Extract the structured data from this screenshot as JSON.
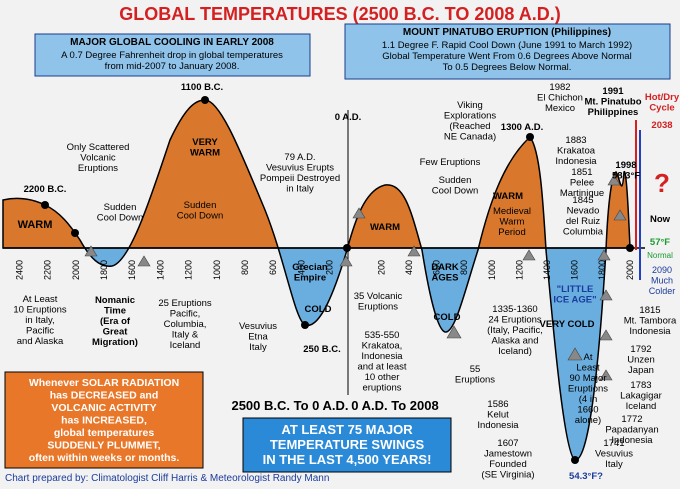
{
  "title": "GLOBAL TEMPERATURES (2500 B.C. TO 2008 A.D.)",
  "box_left": {
    "heading": "MAJOR GLOBAL COOLING IN EARLY 2008",
    "lines": [
      "A 0.7 Degree Fahrenheit drop in global temperatures",
      "from mid-2007 to January 2008."
    ]
  },
  "box_right": {
    "heading": "MOUNT PINATUBO ERUPTION (Philippines)",
    "lines": [
      "1.1 Degree F. Rapid Cool Down (June 1991 to March 1992)",
      "Global Temperature Went From 0.6 Degrees Above Normal",
      "To 0.5 Degrees Below Normal."
    ]
  },
  "box_solar": {
    "lines": [
      "Whenever SOLAR RADIATION",
      "has DECREASED and",
      "VOLCANIC ACTIVITY",
      "has INCREASED,",
      "global temperatures",
      "SUDDENLY PLUMMET,",
      "often within weeks or months."
    ]
  },
  "box_swings": {
    "lines": [
      "AT LEAST 75 MAJOR",
      "TEMPERATURE SWINGS",
      "IN THE LAST 4,500 YEARS!"
    ]
  },
  "bc_ticks": [
    2400,
    2200,
    2000,
    1800,
    1600,
    1400,
    1200,
    1000,
    800,
    600,
    400,
    200
  ],
  "ad_ticks": [
    200,
    400,
    600,
    800,
    1000,
    1200,
    1400,
    1600,
    1800,
    2000
  ],
  "annotations": [
    {
      "lines": [
        "2200 B.C."
      ]
    },
    {
      "lines": [
        "WARM"
      ]
    },
    {
      "lines": [
        "Sudden",
        "Cool Down"
      ]
    },
    {
      "lines": [
        "Only Scattered",
        "Volcanic",
        "Eruptions"
      ]
    },
    {
      "lines": [
        "1100 B.C."
      ]
    },
    {
      "lines": [
        "VERY",
        "WARM"
      ]
    },
    {
      "lines": [
        "Sudden",
        "Cool Down"
      ]
    },
    {
      "lines": [
        "79 A.D.",
        "Vesuvius Erupts",
        "Pompeii Destroyed",
        "in Italy"
      ]
    },
    {
      "lines": [
        "0 A.D."
      ]
    },
    {
      "lines": [
        "WARM"
      ]
    },
    {
      "lines": [
        "Viking",
        "Explorations",
        "(Reached",
        "NE Canada)"
      ]
    },
    {
      "lines": [
        "Few Eruptions"
      ]
    },
    {
      "lines": [
        "Sudden",
        "Cool Down"
      ]
    },
    {
      "lines": [
        "1300 A.D."
      ]
    },
    {
      "lines": [
        "WARM"
      ]
    },
    {
      "lines": [
        "Medieval",
        "Warm",
        "Period"
      ]
    },
    {
      "lines": [
        "1982",
        "El Chichon",
        "Mexico"
      ]
    },
    {
      "lines": [
        "1991",
        "Mt. Pinatubo",
        "Philippines"
      ]
    },
    {
      "lines": [
        "1883",
        "Krakatoa",
        "Indonesia"
      ]
    },
    {
      "lines": [
        "1851",
        "Pelee",
        "Martinique"
      ]
    },
    {
      "lines": [
        "1845",
        "Nevado",
        "del Ruiz",
        "Columbia"
      ]
    },
    {
      "lines": [
        "1998",
        "58.3°F"
      ]
    },
    {
      "lines": [
        "Hot/Dry",
        "Cycle"
      ]
    },
    {
      "lines": [
        "2038"
      ]
    },
    {
      "lines": [
        "?"
      ]
    },
    {
      "lines": [
        "Now"
      ]
    },
    {
      "lines": [
        "57°F"
      ]
    },
    {
      "lines": [
        "Normal"
      ]
    },
    {
      "lines": [
        "2090",
        "Much",
        "Colder"
      ]
    },
    {
      "lines": [
        "At Least",
        "10 Eruptions",
        "in Italy,",
        "Pacific",
        "and Alaska"
      ]
    },
    {
      "lines": [
        "Nomanic",
        "Time",
        "(Era of",
        "Great",
        "Migration)"
      ]
    },
    {
      "lines": [
        "25 Eruptions",
        "Pacific,",
        "Columbia,",
        "Italy &",
        "Iceland"
      ]
    },
    {
      "lines": [
        "Grecian",
        "Empire"
      ]
    },
    {
      "lines": [
        "COLD"
      ]
    },
    {
      "lines": [
        "Vesuvius",
        "Etna",
        "Italy"
      ]
    },
    {
      "lines": [
        "250 B.C."
      ]
    },
    {
      "lines": [
        "35 Volcanic",
        "Eruptions"
      ]
    },
    {
      "lines": [
        "535-550",
        "Krakatoa,",
        "Indonesia",
        "and at least",
        "10 other",
        "eruptions"
      ]
    },
    {
      "lines": [
        "DARK",
        "AGES"
      ]
    },
    {
      "lines": [
        "COLD"
      ]
    },
    {
      "lines": [
        "55",
        "Eruptions"
      ]
    },
    {
      "lines": [
        "1335-1360",
        "24 Eruptions",
        "(Italy, Pacific,",
        "Alaska and",
        "Iceland)"
      ]
    },
    {
      "lines": [
        "\"LITTLE",
        "ICE AGE\""
      ]
    },
    {
      "lines": [
        "VERY COLD"
      ]
    },
    {
      "lines": [
        "At",
        "Least",
        "90 Major",
        "Eruptions",
        "(4 in",
        "1660",
        "alone)"
      ]
    },
    {
      "lines": [
        "1815",
        "Mt. Tambora",
        "Indonesia"
      ]
    },
    {
      "lines": [
        "1792",
        "Unzen",
        "Japan"
      ]
    },
    {
      "lines": [
        "1783",
        "Lakagigar",
        "Iceland"
      ]
    },
    {
      "lines": [
        "1772",
        "Papadanyan",
        "Indonesia"
      ]
    },
    {
      "lines": [
        "1741",
        "Vesuvius",
        "Italy"
      ]
    },
    {
      "lines": [
        "1586",
        "Kelut",
        "Indonesia"
      ]
    },
    {
      "lines": [
        "1607",
        "Jamestown",
        "Founded",
        "(SE Virginia)"
      ]
    },
    {
      "lines": [
        "54.3°F?"
      ]
    },
    {
      "lines": [
        "2500 B.C. To 0 A.D."
      ]
    },
    {
      "lines": [
        "0 A.D. To 2008"
      ]
    },
    {
      "lines": [
        "Chart prepared by: Climatologist Cliff Harris & Meteorologist Randy Mann"
      ]
    }
  ]
}
